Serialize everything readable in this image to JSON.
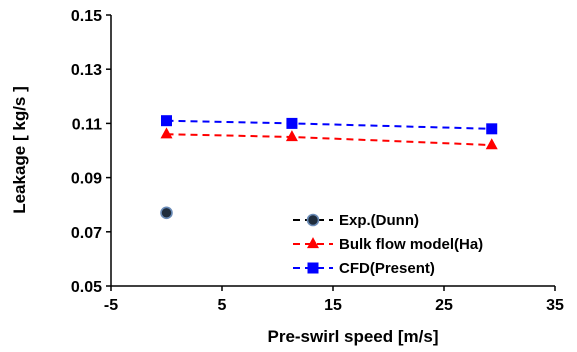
{
  "chart_data": {
    "type": "scatter",
    "title": "",
    "xlabel": "Pre-swirl speed [m/s]",
    "ylabel": "Leakage [ kg/s ]",
    "xlim": [
      -5,
      35
    ],
    "ylim": [
      0.05,
      0.15
    ],
    "x_ticks": [
      -5,
      5,
      15,
      25,
      35
    ],
    "y_ticks": [
      0.05,
      0.07,
      0.09,
      0.11,
      0.13,
      0.15
    ],
    "x_tick_labels": [
      "-5",
      "5",
      "15",
      "25",
      "35"
    ],
    "y_tick_labels": [
      "0.05",
      "0.07",
      "0.09",
      "0.11",
      "0.13",
      "0.15"
    ],
    "grid": false,
    "legend_position": "bottom-right",
    "series": [
      {
        "name": "Exp.(Dunn)",
        "marker": "circle",
        "color": "#000000",
        "marker_fill": "#1f2d3d",
        "line": "dashed",
        "x": [
          0
        ],
        "y": [
          0.077
        ]
      },
      {
        "name": "Bulk flow model(Ha)",
        "marker": "triangle",
        "color": "#ff0000",
        "marker_fill": "#ff0000",
        "line": "dashed",
        "x": [
          0,
          11.3,
          29.3
        ],
        "y": [
          0.106,
          0.105,
          0.102
        ]
      },
      {
        "name": "CFD(Present)",
        "marker": "square",
        "color": "#0000ff",
        "marker_fill": "#0000ff",
        "line": "dashed",
        "x": [
          0,
          11.3,
          29.3
        ],
        "y": [
          0.111,
          0.11,
          0.108
        ]
      }
    ]
  }
}
